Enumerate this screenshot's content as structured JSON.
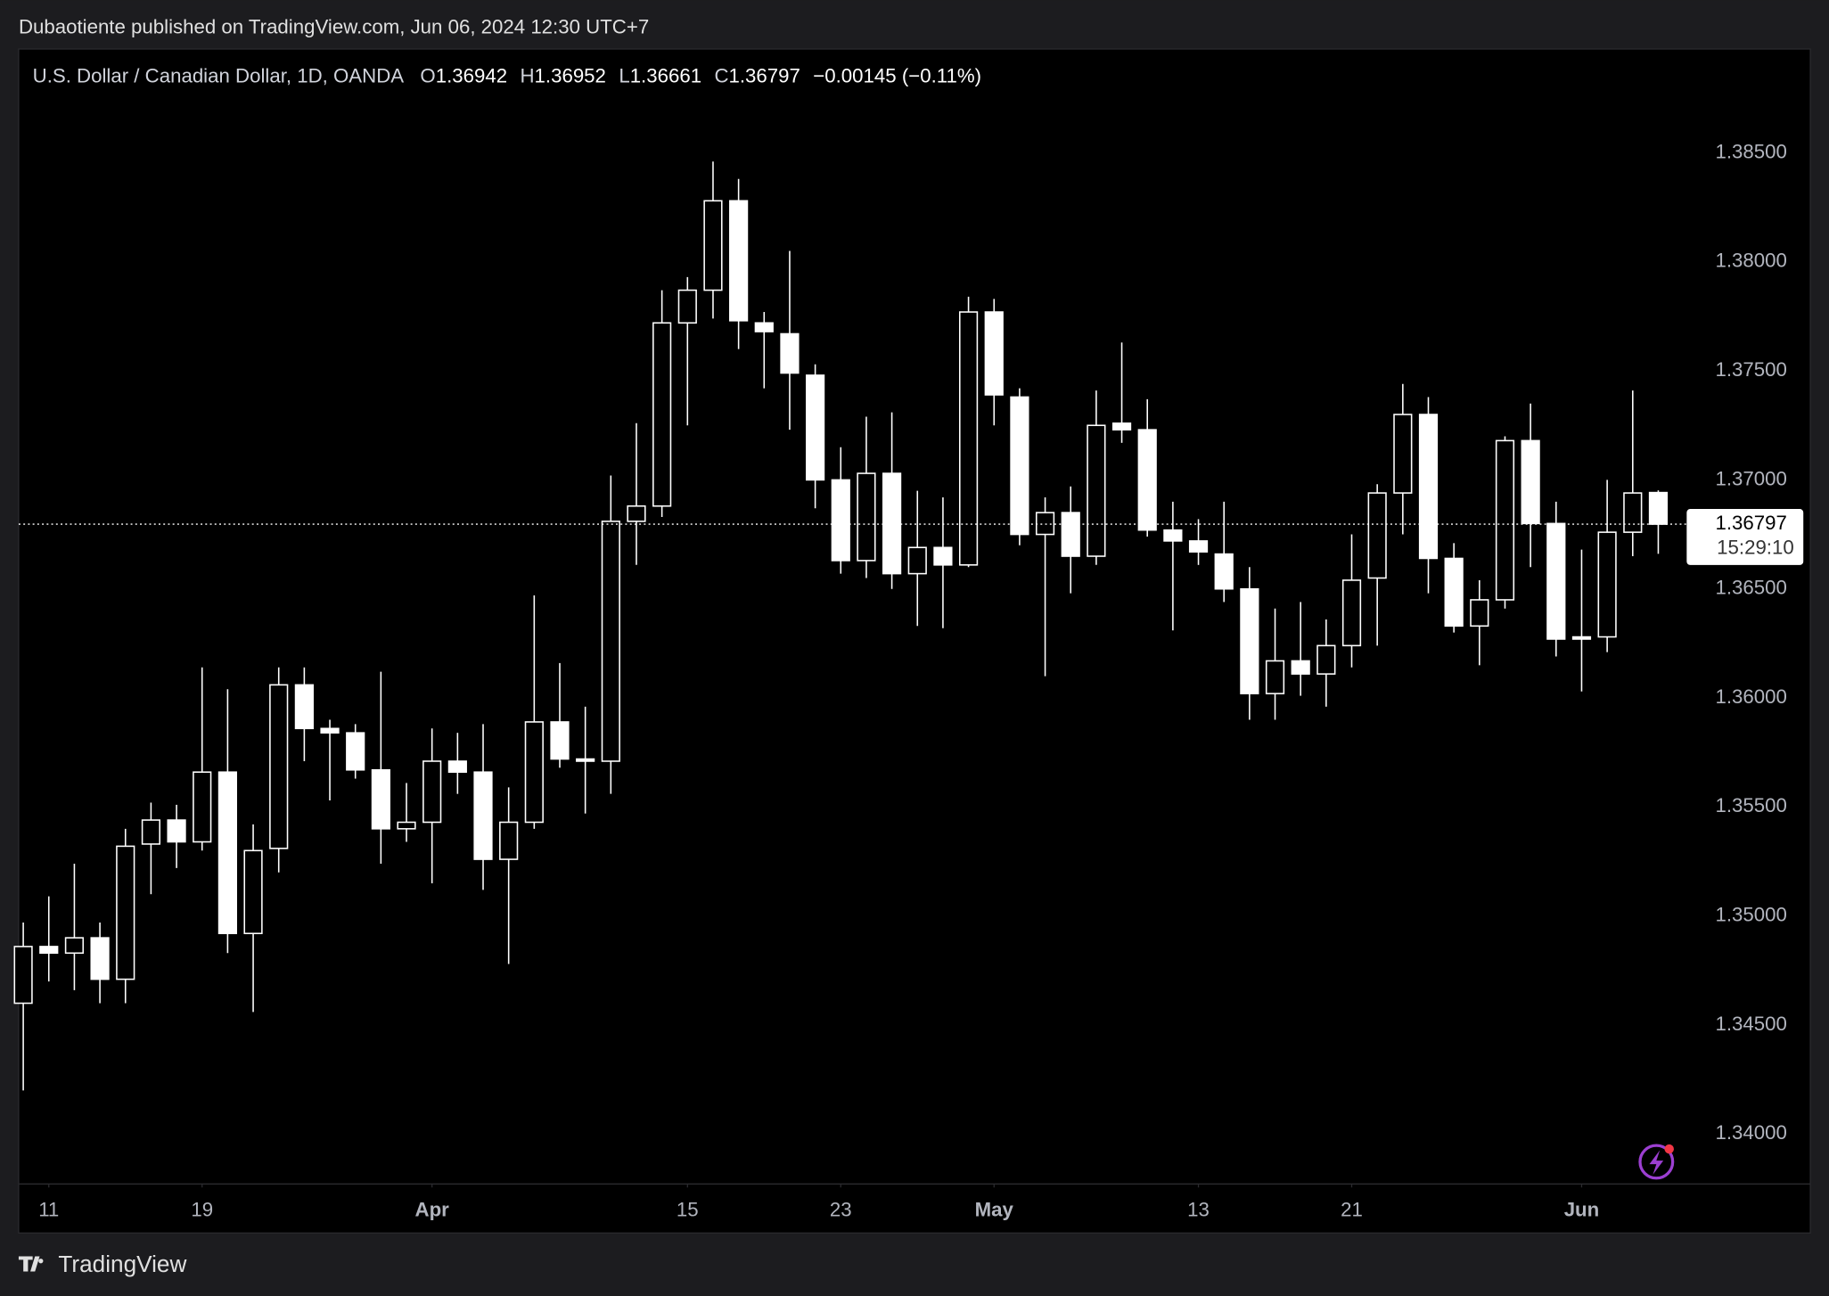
{
  "published": "Dubaotiente published on TradingView.com, Jun 06, 2024 12:30 UTC+7",
  "brand": "TradingView",
  "chart_data": {
    "type": "candlestick",
    "symbol": "U.S. Dollar / Canadian Dollar, 1D, OANDA",
    "ohlc_legend": [
      {
        "key": "O",
        "value": "1.36942"
      },
      {
        "key": "H",
        "value": "1.36952"
      },
      {
        "key": "L",
        "value": "1.36661"
      },
      {
        "key": "C",
        "value": "1.36797"
      }
    ],
    "change": "−0.00145 (−0.11%)",
    "open": [
      1.346,
      1.3486,
      1.3483,
      1.349,
      1.3471,
      1.3533,
      1.3544,
      1.3534,
      1.3566,
      1.3492,
      1.3531,
      1.3606,
      1.3586,
      1.3584,
      1.3567,
      1.354,
      1.3543,
      1.3571,
      1.3566,
      1.3526,
      1.3543,
      1.3589,
      1.3572,
      1.3571,
      1.3681,
      1.3688,
      1.3772,
      1.3787,
      1.3828,
      1.3772,
      1.3767,
      1.3748,
      1.37,
      1.3663,
      1.3703,
      1.3657,
      1.3669,
      1.3661,
      1.3777,
      1.3738,
      1.3675,
      1.3685,
      1.3665,
      1.3726,
      1.3723,
      1.3677,
      1.3672,
      1.3666,
      1.365,
      1.3602,
      1.3617,
      1.3611,
      1.3624,
      1.3655,
      1.3694,
      1.373,
      1.3664,
      1.3633,
      1.3645,
      1.3718,
      1.368,
      1.3628,
      1.3628,
      1.3676,
      1.36942
    ],
    "high": [
      1.3497,
      1.3509,
      1.3524,
      1.3497,
      1.354,
      1.3552,
      1.3551,
      1.3614,
      1.3604,
      1.3542,
      1.3614,
      1.3614,
      1.359,
      1.3588,
      1.3612,
      1.3561,
      1.3586,
      1.3584,
      1.3588,
      1.3559,
      1.3647,
      1.3616,
      1.3596,
      1.3702,
      1.3726,
      1.3787,
      1.3793,
      1.3846,
      1.3838,
      1.3777,
      1.3805,
      1.3753,
      1.3715,
      1.3729,
      1.3731,
      1.3695,
      1.3692,
      1.3784,
      1.3783,
      1.3742,
      1.3692,
      1.3697,
      1.3741,
      1.3763,
      1.3737,
      1.369,
      1.3682,
      1.369,
      1.366,
      1.3641,
      1.3644,
      1.3636,
      1.3675,
      1.3698,
      1.3744,
      1.3738,
      1.3671,
      1.3654,
      1.372,
      1.3735,
      1.369,
      1.3668,
      1.37,
      1.3741,
      1.36952
    ],
    "low": [
      1.342,
      1.347,
      1.3466,
      1.346,
      1.346,
      1.351,
      1.3522,
      1.353,
      1.3483,
      1.3456,
      1.352,
      1.3571,
      1.3553,
      1.3563,
      1.3524,
      1.3534,
      1.3515,
      1.3556,
      1.3512,
      1.3478,
      1.354,
      1.3568,
      1.3547,
      1.3556,
      1.3661,
      1.3683,
      1.3725,
      1.3774,
      1.376,
      1.3742,
      1.3723,
      1.3687,
      1.3657,
      1.3655,
      1.365,
      1.3633,
      1.3632,
      1.366,
      1.3725,
      1.367,
      1.361,
      1.3648,
      1.3661,
      1.3717,
      1.3674,
      1.3631,
      1.3661,
      1.3644,
      1.359,
      1.359,
      1.3601,
      1.3596,
      1.3614,
      1.3624,
      1.3675,
      1.3648,
      1.363,
      1.3615,
      1.3641,
      1.366,
      1.3619,
      1.3603,
      1.3621,
      1.3665,
      1.36661
    ],
    "close": [
      1.3486,
      1.3483,
      1.349,
      1.3471,
      1.3532,
      1.3544,
      1.3534,
      1.3566,
      1.3492,
      1.353,
      1.3606,
      1.3586,
      1.3584,
      1.3567,
      1.354,
      1.3543,
      1.3571,
      1.3566,
      1.3526,
      1.3543,
      1.3589,
      1.3572,
      1.3571,
      1.3681,
      1.3688,
      1.3772,
      1.3787,
      1.3828,
      1.3773,
      1.3768,
      1.3749,
      1.37,
      1.3663,
      1.3703,
      1.3657,
      1.3669,
      1.3661,
      1.3777,
      1.3739,
      1.3675,
      1.3685,
      1.3665,
      1.3725,
      1.3723,
      1.3677,
      1.3672,
      1.3667,
      1.365,
      1.3602,
      1.3617,
      1.3611,
      1.3624,
      1.3654,
      1.3694,
      1.373,
      1.3664,
      1.3633,
      1.3645,
      1.3718,
      1.368,
      1.3627,
      1.3627,
      1.3676,
      1.3694,
      1.36797
    ],
    "color": "#ffffff",
    "xlim": [
      -0.18,
      64.93
    ],
    "xticks": [
      {
        "value": 1,
        "label": "11"
      },
      {
        "value": 7,
        "label": "19"
      },
      {
        "value": 16,
        "label": "Apr"
      },
      {
        "value": 26,
        "label": "15"
      },
      {
        "value": 32,
        "label": "23"
      },
      {
        "value": 38,
        "label": "May"
      },
      {
        "value": 46,
        "label": "13"
      },
      {
        "value": 52,
        "label": "21"
      },
      {
        "value": 61,
        "label": "Jun"
      }
    ],
    "ylim": [
      1.33771,
      1.38976
    ],
    "yticks": [
      {
        "value": 1.34,
        "label": "1.34000"
      },
      {
        "value": 1.345,
        "label": "1.34500"
      },
      {
        "value": 1.35,
        "label": "1.35000"
      },
      {
        "value": 1.355,
        "label": "1.35500"
      },
      {
        "value": 1.36,
        "label": "1.36000"
      },
      {
        "value": 1.365,
        "label": "1.36500"
      },
      {
        "value": 1.37,
        "label": "1.37000"
      },
      {
        "value": 1.375,
        "label": "1.37500"
      },
      {
        "value": 1.38,
        "label": "1.38000"
      },
      {
        "value": 1.385,
        "label": "1.38500"
      }
    ],
    "last_price": {
      "value": 1.36797,
      "label": "1.36797",
      "countdown": "15:29:10"
    }
  }
}
